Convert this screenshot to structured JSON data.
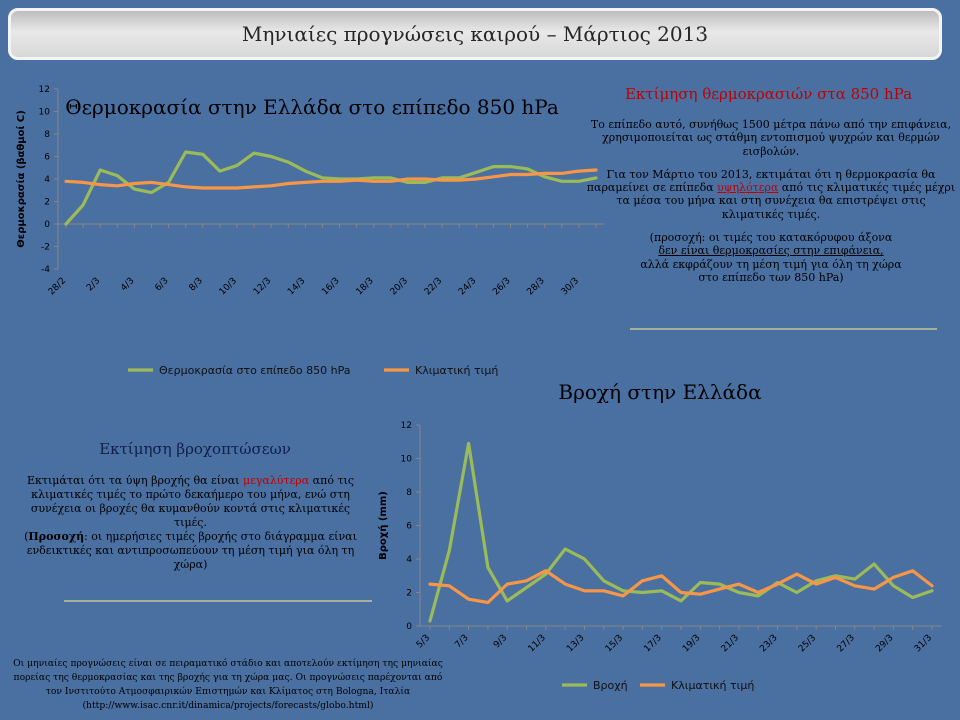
{
  "header": {
    "title": "Μηνιαίες προγνώσεις καιρού – Μάρτιος 2013"
  },
  "temperature_panel": {
    "heading": "Εκτίμηση θερμοκρασιών στα 850 hPa",
    "p1": "Το επίπεδο αυτό, συνήθως 1500 μέτρα πάνω από την επιφάνεια, χρησιμοποιείται ως στάθμη εντοπισμού ψυχρών και θερμών εισβολών.",
    "p2_before": "Για τον Μάρτιο του 2013, εκτιμάται ότι η θερμοκρασία θα παραμείνει σε επίπεδα ",
    "p2_highlight": "υψηλότερα",
    "p2_after": " από τις κλιματικές τιμές μέχρι τα μέσα του μήνα και στη συνέχεια θα επιστρέψει στις κλιματικές τιμές.",
    "note_line1": "(προσοχή: οι τιμές του κατακόρυφου άξονα",
    "note_line2": "δεν είναι θερμοκρασίες στην επιφάνεια,",
    "note_line3": "αλλά εκφράζουν τη μέση τιμή για όλη τη χώρα",
    "note_line4": "στο επίπεδο των 850 hPa)"
  },
  "rain_panel": {
    "heading": "Εκτίμηση βροχοπτώσεων",
    "p1_before": "Εκτιμάται ότι τα ύψη βροχής θα είναι ",
    "p1_highlight": "μεγαλύτερα",
    "p1_after": " από τις κλιματικές τιμές το πρώτο δεκαήμερο του μήνα, ενώ στη συνέχεια οι βροχές θα κυμανθούν κοντά στις κλιματικές τιμές.",
    "note_prefix": "(",
    "note_bold": "Προσοχή",
    "note_rest": ": οι ημερήσιες τιμές βροχής στο διάγραμμα είναι ενδεικτικές και αντιπροσωπεύουν τη μέση τιμή για όλη τη χώρα)"
  },
  "footnote": "Οι μηνιαίες προγνώσεις είναι σε πειραματικό στάδιο και αποτελούν εκτίμηση της μηνιαίας πορείας της θερμοκρασίας και της βροχής για τη χώρα μας. Οι προγνώσεις παρέχονται από τον Ινστιτούτο Ατμοσφαιρικών Επιστημών και Κλίματος στη Bologna, Ιταλία (http://www.isac.cnr.it/dinamica/projects/forecasts/globo.html)",
  "colors": {
    "forecast": "#9bbb59",
    "climate": "#f79646",
    "background": "#4a6fa1",
    "highlight": "#c00000"
  },
  "chart_data": [
    {
      "type": "line",
      "title": "Θερμοκρασία στην Ελλάδα στο επίπεδο 850 hPa",
      "ylabel": "Θερμοκρασία (βαθμοί C)",
      "ylim": [
        -4,
        12
      ],
      "yticks": [
        -4,
        -2,
        0,
        2,
        4,
        6,
        8,
        10,
        12
      ],
      "x": [
        "28/2",
        "1/3",
        "2/3",
        "3/3",
        "4/3",
        "5/3",
        "6/3",
        "7/3",
        "8/3",
        "9/3",
        "10/3",
        "11/3",
        "12/3",
        "13/3",
        "14/3",
        "15/3",
        "16/3",
        "17/3",
        "18/3",
        "19/3",
        "20/3",
        "21/3",
        "22/3",
        "23/3",
        "24/3",
        "25/3",
        "26/3",
        "27/3",
        "28/3",
        "29/3",
        "30/3",
        "31/3"
      ],
      "xtick_labels": [
        "28/2",
        "2/3",
        "4/3",
        "6/3",
        "8/3",
        "10/3",
        "12/3",
        "14/3",
        "16/3",
        "18/3",
        "20/3",
        "22/3",
        "24/3",
        "26/3",
        "28/3",
        "30/3"
      ],
      "legend_position": "bottom",
      "series": [
        {
          "name": "Θερμοκρασία στο επίπεδο 850 hPa",
          "color": "#9bbb59",
          "values": [
            0.0,
            1.7,
            4.8,
            4.3,
            3.1,
            2.8,
            3.7,
            6.4,
            6.2,
            4.7,
            5.2,
            6.3,
            6.0,
            5.5,
            4.7,
            4.1,
            4.0,
            4.0,
            4.1,
            4.1,
            3.7,
            3.7,
            4.1,
            4.1,
            4.6,
            5.1,
            5.1,
            4.9,
            4.2,
            3.8,
            3.8,
            4.1
          ]
        },
        {
          "name": "Κλιματική τιμή",
          "color": "#f79646",
          "values": [
            3.8,
            3.7,
            3.5,
            3.4,
            3.6,
            3.7,
            3.5,
            3.3,
            3.2,
            3.2,
            3.2,
            3.3,
            3.4,
            3.6,
            3.7,
            3.8,
            3.8,
            3.9,
            3.8,
            3.8,
            4.0,
            4.0,
            3.9,
            3.9,
            4.0,
            4.2,
            4.4,
            4.4,
            4.5,
            4.5,
            4.7,
            4.8
          ]
        }
      ]
    },
    {
      "type": "line",
      "title": "Βροχή στην Ελλάδα",
      "ylabel": "Βροχή (mm)",
      "ylim": [
        0,
        12
      ],
      "yticks": [
        0,
        2,
        4,
        6,
        8,
        10,
        12
      ],
      "x": [
        "5/3",
        "6/3",
        "7/3",
        "8/3",
        "9/3",
        "10/3",
        "11/3",
        "12/3",
        "13/3",
        "14/3",
        "15/3",
        "16/3",
        "17/3",
        "18/3",
        "19/3",
        "20/3",
        "21/3",
        "22/3",
        "23/3",
        "24/3",
        "25/3",
        "26/3",
        "27/3",
        "28/3",
        "29/3",
        "30/3",
        "31/3"
      ],
      "xtick_labels": [
        "5/3",
        "7/3",
        "9/3",
        "11/3",
        "13/3",
        "15/3",
        "17/3",
        "19/3",
        "21/3",
        "23/3",
        "25/3",
        "27/3",
        "29/3",
        "31/3"
      ],
      "legend_position": "bottom",
      "series": [
        {
          "name": "Βροχή",
          "color": "#9bbb59",
          "values": [
            0.3,
            4.5,
            10.9,
            3.5,
            1.5,
            2.3,
            3.1,
            4.6,
            4.0,
            2.7,
            2.1,
            2.0,
            2.1,
            1.5,
            2.6,
            2.5,
            2.0,
            1.8,
            2.6,
            2.0,
            2.7,
            3.0,
            2.8,
            3.7,
            2.4,
            1.7,
            2.1
          ]
        },
        {
          "name": "Κλιματική τιμή",
          "color": "#f79646",
          "values": [
            2.5,
            2.4,
            1.6,
            1.4,
            2.5,
            2.7,
            3.3,
            2.5,
            2.1,
            2.1,
            1.8,
            2.7,
            3.0,
            2.0,
            1.9,
            2.2,
            2.5,
            2.0,
            2.5,
            3.1,
            2.5,
            2.9,
            2.4,
            2.2,
            2.9,
            3.3,
            2.4
          ]
        }
      ]
    }
  ]
}
